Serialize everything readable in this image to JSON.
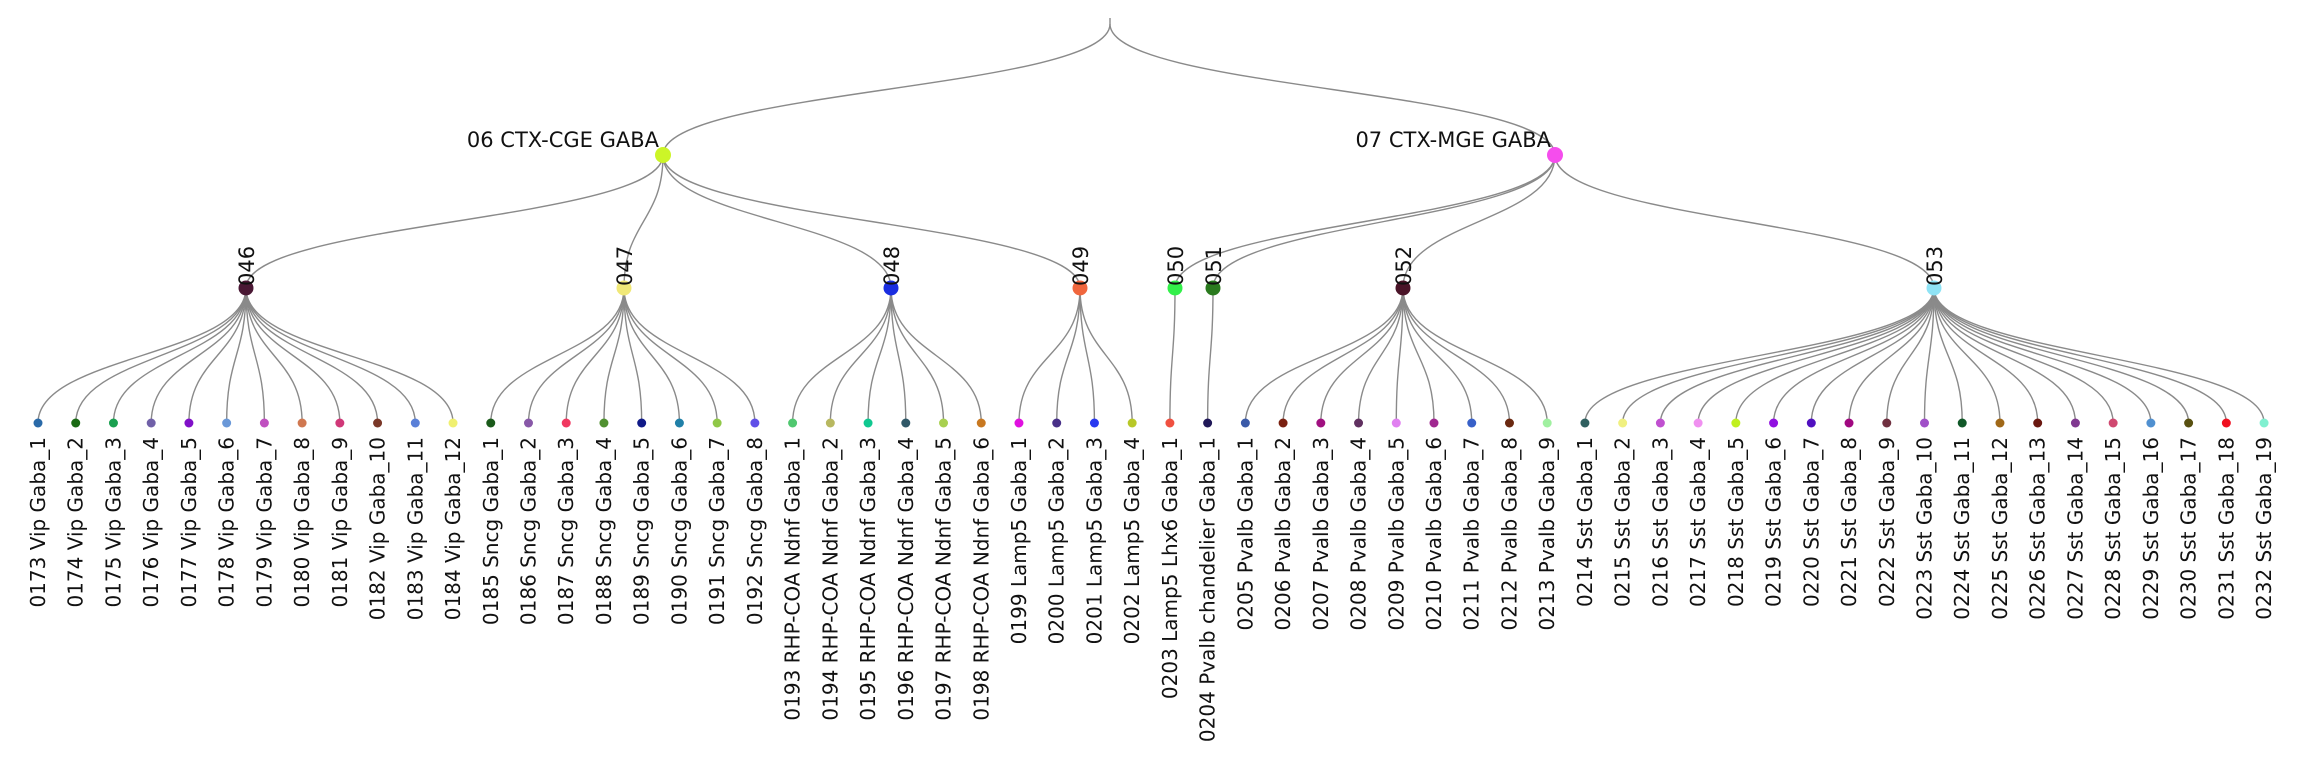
{
  "tree": {
    "classes": [
      {
        "label": "06 CTX-CGE GABA",
        "color": "#ccf527"
      },
      {
        "label": "07 CTX-MGE GABA",
        "color": "#f54ded"
      }
    ],
    "subclasses": [
      {
        "label": "046",
        "parent": 0,
        "color": "#4a1834"
      },
      {
        "label": "047",
        "parent": 0,
        "color": "#f0e878"
      },
      {
        "label": "048",
        "parent": 0,
        "color": "#1a2de0"
      },
      {
        "label": "049",
        "parent": 0,
        "color": "#f0663d"
      },
      {
        "label": "050",
        "parent": 1,
        "color": "#33f04a"
      },
      {
        "label": "051",
        "parent": 1,
        "color": "#2a7a1e"
      },
      {
        "label": "052",
        "parent": 1,
        "color": "#4a1428"
      },
      {
        "label": "053",
        "parent": 1,
        "color": "#8fe3f5"
      }
    ],
    "leaves": [
      {
        "label": "0173 Vip Gaba_1",
        "parent": 0,
        "color": "#2a6aa8"
      },
      {
        "label": "0174 Vip Gaba_2",
        "parent": 0,
        "color": "#1a6a14"
      },
      {
        "label": "0175 Vip Gaba_3",
        "parent": 0,
        "color": "#1aa050"
      },
      {
        "label": "0176 Vip Gaba_4",
        "parent": 0,
        "color": "#7060a8"
      },
      {
        "label": "0177 Vip Gaba_5",
        "parent": 0,
        "color": "#8010c8"
      },
      {
        "label": "0178 Vip Gaba_6",
        "parent": 0,
        "color": "#6a98d8"
      },
      {
        "label": "0179 Vip Gaba_7",
        "parent": 0,
        "color": "#c050c0"
      },
      {
        "label": "0180 Vip Gaba_8",
        "parent": 0,
        "color": "#d07850"
      },
      {
        "label": "0181 Vip Gaba_9",
        "parent": 0,
        "color": "#d03878"
      },
      {
        "label": "0182 Vip Gaba_10",
        "parent": 0,
        "color": "#7a3828"
      },
      {
        "label": "0183 Vip Gaba_11",
        "parent": 0,
        "color": "#5a80d8"
      },
      {
        "label": "0184 Vip Gaba_12",
        "parent": 0,
        "color": "#f0f070"
      },
      {
        "label": "0185 Sncg Gaba_1",
        "parent": 1,
        "color": "#1a5a1a"
      },
      {
        "label": "0186 Sncg Gaba_2",
        "parent": 1,
        "color": "#8858a8"
      },
      {
        "label": "0187 Sncg Gaba_3",
        "parent": 1,
        "color": "#f03860"
      },
      {
        "label": "0188 Sncg Gaba_4",
        "parent": 1,
        "color": "#509030"
      },
      {
        "label": "0189 Sncg Gaba_5",
        "parent": 1,
        "color": "#101a88"
      },
      {
        "label": "0190 Sncg Gaba_6",
        "parent": 1,
        "color": "#2080a8"
      },
      {
        "label": "0191 Sncg Gaba_7",
        "parent": 1,
        "color": "#90c848"
      },
      {
        "label": "0192 Sncg Gaba_8",
        "parent": 1,
        "color": "#6050e8"
      },
      {
        "label": "0193 RHP-COA Ndnf Gaba_1",
        "parent": 2,
        "color": "#50c870"
      },
      {
        "label": "0194 RHP-COA Ndnf Gaba_2",
        "parent": 2,
        "color": "#b8b860"
      },
      {
        "label": "0195 RHP-COA Ndnf Gaba_3",
        "parent": 2,
        "color": "#10c890"
      },
      {
        "label": "0196 RHP-COA Ndnf Gaba_4",
        "parent": 2,
        "color": "#305868"
      },
      {
        "label": "0197 RHP-COA Ndnf Gaba_5",
        "parent": 2,
        "color": "#a8d050"
      },
      {
        "label": "0198 RHP-COA Ndnf Gaba_6",
        "parent": 2,
        "color": "#c87820"
      },
      {
        "label": "0199 Lamp5 Gaba_1",
        "parent": 3,
        "color": "#e010e0"
      },
      {
        "label": "0200 Lamp5 Gaba_2",
        "parent": 3,
        "color": "#483088"
      },
      {
        "label": "0201 Lamp5 Gaba_3",
        "parent": 3,
        "color": "#2838f0"
      },
      {
        "label": "0202 Lamp5 Gaba_4",
        "parent": 3,
        "color": "#b8c828"
      },
      {
        "label": "0203 Lamp5 Lhx6 Gaba_1",
        "parent": 4,
        "color": "#f05040"
      },
      {
        "label": "0204 Pvalb chandelier Gaba_1",
        "parent": 5,
        "color": "#201858"
      },
      {
        "label": "0205 Pvalb Gaba_1",
        "parent": 6,
        "color": "#3a5aa8"
      },
      {
        "label": "0206 Pvalb Gaba_2",
        "parent": 6,
        "color": "#7a2010"
      },
      {
        "label": "0207 Pvalb Gaba_3",
        "parent": 6,
        "color": "#a01080"
      },
      {
        "label": "0208 Pvalb Gaba_4",
        "parent": 6,
        "color": "#603060"
      },
      {
        "label": "0209 Pvalb Gaba_5",
        "parent": 6,
        "color": "#e080f0"
      },
      {
        "label": "0210 Pvalb Gaba_6",
        "parent": 6,
        "color": "#a02890"
      },
      {
        "label": "0211 Pvalb Gaba_7",
        "parent": 6,
        "color": "#3860c8"
      },
      {
        "label": "0212 Pvalb Gaba_8",
        "parent": 6,
        "color": "#6a2810"
      },
      {
        "label": "0213 Pvalb Gaba_9",
        "parent": 6,
        "color": "#a0f0a0"
      },
      {
        "label": "0214 Sst Gaba_1",
        "parent": 7,
        "color": "#306060"
      },
      {
        "label": "0215 Sst Gaba_2",
        "parent": 7,
        "color": "#f0f080"
      },
      {
        "label": "0216 Sst Gaba_3",
        "parent": 7,
        "color": "#c050d0"
      },
      {
        "label": "0217 Sst Gaba_4",
        "parent": 7,
        "color": "#f090f0"
      },
      {
        "label": "0218 Sst Gaba_5",
        "parent": 7,
        "color": "#c0f020"
      },
      {
        "label": "0219 Sst Gaba_6",
        "parent": 7,
        "color": "#9010e0"
      },
      {
        "label": "0220 Sst Gaba_7",
        "parent": 7,
        "color": "#5010c0"
      },
      {
        "label": "0221 Sst Gaba_8",
        "parent": 7,
        "color": "#a00880"
      },
      {
        "label": "0222 Sst Gaba_9",
        "parent": 7,
        "color": "#703040"
      },
      {
        "label": "0223 Sst Gaba_10",
        "parent": 7,
        "color": "#a050c8"
      },
      {
        "label": "0224 Sst Gaba_11",
        "parent": 7,
        "color": "#105828"
      },
      {
        "label": "0225 Sst Gaba_12",
        "parent": 7,
        "color": "#a06818"
      },
      {
        "label": "0226 Sst Gaba_13",
        "parent": 7,
        "color": "#6a1810"
      },
      {
        "label": "0227 Sst Gaba_14",
        "parent": 7,
        "color": "#803890"
      },
      {
        "label": "0228 Sst Gaba_15",
        "parent": 7,
        "color": "#d04870"
      },
      {
        "label": "0229 Sst Gaba_16",
        "parent": 7,
        "color": "#5090d0"
      },
      {
        "label": "0230 Sst Gaba_17",
        "parent": 7,
        "color": "#585010"
      },
      {
        "label": "0231 Sst Gaba_18",
        "parent": 7,
        "color": "#f01020"
      },
      {
        "label": "0232 Sst Gaba_19",
        "parent": 7,
        "color": "#80f0d0"
      }
    ]
  }
}
